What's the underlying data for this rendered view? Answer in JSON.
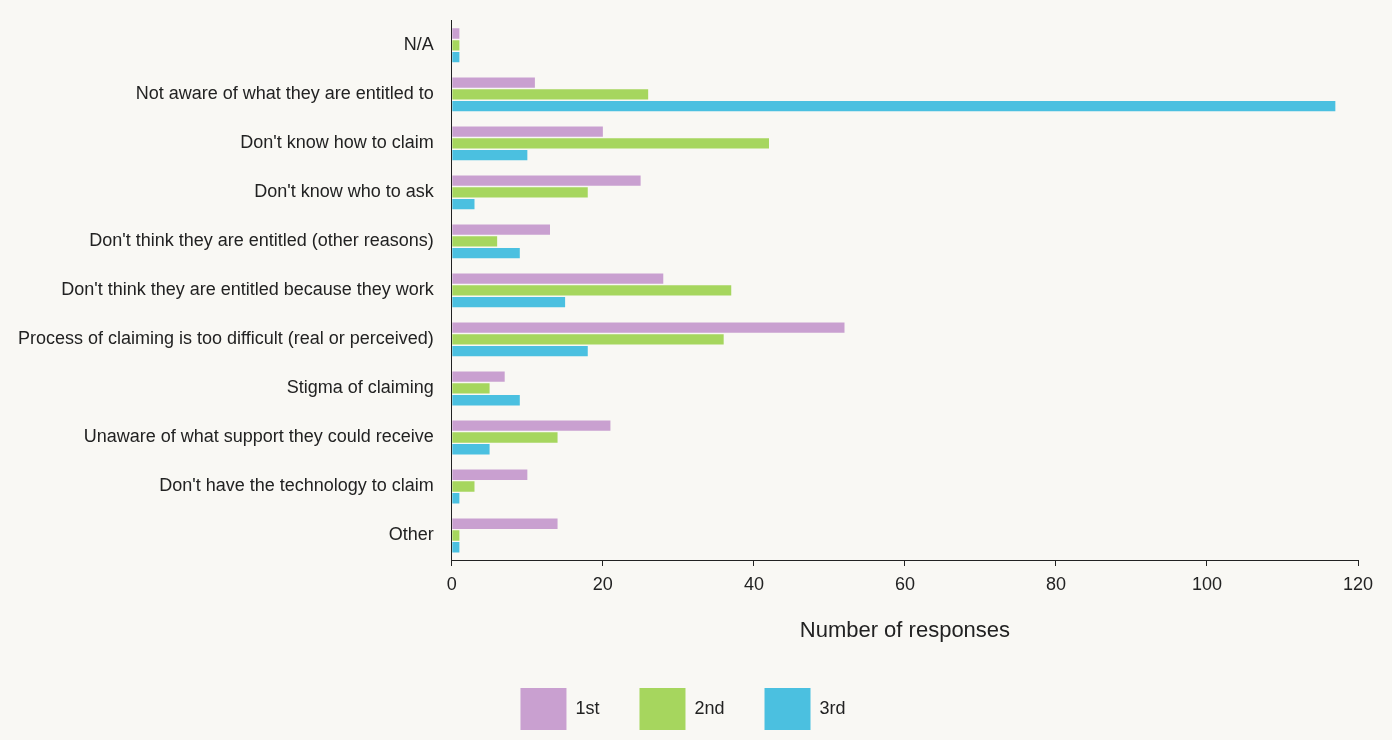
{
  "chart_data": {
    "type": "bar",
    "orientation": "horizontal",
    "xlabel": "Number of responses",
    "categories": [
      "N/A",
      "Not aware of what they are entitled to",
      "Don't know how to claim",
      "Don't know who to ask",
      "Don't think they are entitled (other reasons)",
      "Don't think they are entitled because they work",
      "Process of claiming is too difficult (real or perceived)",
      "Stigma of claiming",
      "Unaware of what support they could receive",
      "Don't have the technology to claim",
      "Other"
    ],
    "series": [
      {
        "name": "1st",
        "color": "#c9a0d0",
        "values": [
          1,
          11,
          20,
          25,
          13,
          28,
          52,
          7,
          21,
          10,
          14
        ]
      },
      {
        "name": "2nd",
        "color": "#a6d65e",
        "values": [
          1,
          26,
          42,
          18,
          6,
          37,
          36,
          5,
          14,
          3,
          1
        ]
      },
      {
        "name": "3rd",
        "color": "#4bc0e0",
        "values": [
          1,
          117,
          10,
          3,
          9,
          15,
          18,
          9,
          5,
          1,
          1
        ]
      }
    ],
    "xlim": [
      0,
      120
    ],
    "xticks": [
      0,
      20,
      40,
      60,
      80,
      100,
      120
    ],
    "grid": false,
    "legend": "bottom"
  }
}
